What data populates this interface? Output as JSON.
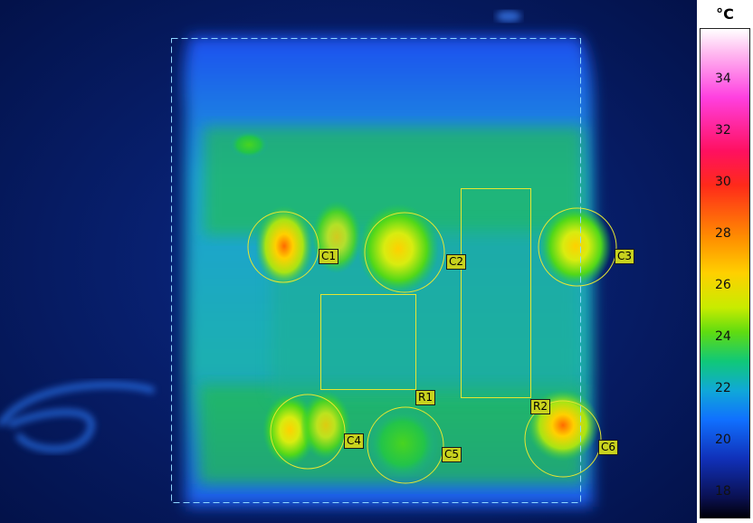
{
  "unit": "°C",
  "scale": {
    "min": 17,
    "max": 36,
    "labels": [
      "34",
      "32",
      "30",
      "28",
      "26",
      "24",
      "22",
      "20",
      "18"
    ],
    "label_values": [
      34,
      32,
      30,
      28,
      26,
      24,
      22,
      20,
      18
    ]
  },
  "measurements": {
    "circles": [
      "C1",
      "C2",
      "C3",
      "C4",
      "C5",
      "C6"
    ],
    "rectangles": [
      "R1",
      "R2"
    ]
  },
  "colors": {
    "marker": "#e6e632",
    "frame": "#8fd8ff",
    "tag_fill": "#c8d21e",
    "background": "#061a5a"
  }
}
